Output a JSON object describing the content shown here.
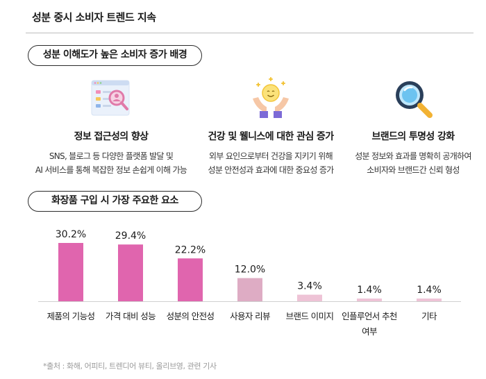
{
  "header": {
    "title": "성분 중시 소비자 트렌드 지속"
  },
  "section1": {
    "label": "성분 이해도가 높은 소비자 증가 배경"
  },
  "factors": [
    {
      "icon": "checklist-magnifier-icon",
      "title": "정보 접근성의 향상",
      "desc1": "SNS, 블로그 등 다양한 플랫폼 발달 및",
      "desc2": "AI 서비스를 통해 복잡한 정보 손쉽게 이해 가능"
    },
    {
      "icon": "wellness-hands-icon",
      "title": "건강 및 웰니스에 대한 관심 증가",
      "desc1": "외부 요인으로부터 건강을 지키기 위해",
      "desc2": "성분 안전성과 효과에 대한 중요성 증가"
    },
    {
      "icon": "magnifying-glass-icon",
      "title": "브랜드의 투명성 강화",
      "desc1": "성분 정보와 효과를 명확히 공개하여",
      "desc2": "소비자와 브랜드간 신뢰 형성"
    }
  ],
  "section2": {
    "label": "화장품 구입 시 가장 주요한 요소"
  },
  "chart_data": {
    "type": "bar",
    "categories": [
      "제품의 기능성",
      "가격 대비 성능",
      "성분의 안전성",
      "사용자 리뷰",
      "브랜드 이미지",
      "인플루언서 추천 여부",
      "기타"
    ],
    "category_lines": [
      [
        "제품의 기능성"
      ],
      [
        "가격 대비 성능"
      ],
      [
        "성분의 안전성"
      ],
      [
        "사용자 리뷰"
      ],
      [
        "브랜드 이미지"
      ],
      [
        "인플루언서 추천",
        "여부"
      ],
      [
        "기타"
      ]
    ],
    "values": [
      30.2,
      29.4,
      22.2,
      12.0,
      3.4,
      1.4,
      1.4
    ],
    "value_labels": [
      "30.2%",
      "29.4%",
      "22.2%",
      "12.0%",
      "3.4%",
      "1.4%",
      "1.4%"
    ],
    "unit": "%",
    "colors": {
      "highlight": "#e065ae",
      "muted": "#deacc4",
      "light": "#eec3d6"
    },
    "bar_color_groups": [
      "highlight",
      "highlight",
      "highlight",
      "muted",
      "light",
      "light",
      "light"
    ],
    "ylim": [
      0,
      30.2
    ]
  },
  "footer": {
    "source": "*출처 : 화해, 어피티, 트렌디어 뷰티, 올리브영, 관련 기사"
  }
}
